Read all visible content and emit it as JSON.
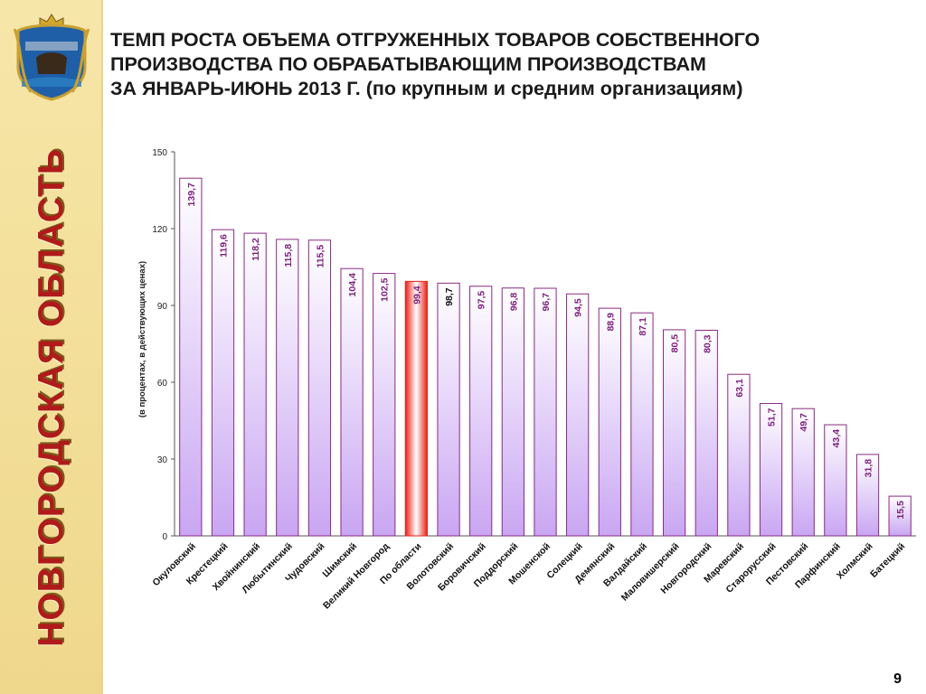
{
  "slide": {
    "region_title": "НОВГОРОДСКАЯ ОБЛАСТЬ",
    "title_lines": [
      "ТЕМП РОСТА ОБЪЕМА ОТГРУЖЕННЫХ ТОВАРОВ СОБСТВЕННОГО",
      "ПРОИЗВОДСТВА ПО ОБРАБАТЫВАЮЩИМ ПРОИЗВОДСТВАМ",
      "ЗА ЯНВАРЬ-ИЮНЬ 2013 Г. (по крупным и средним организациям)"
    ],
    "page_number": "9",
    "emblem_icon": "novgorod-coat-of-arms-icon"
  },
  "colors": {
    "bar_top": "#ffffff",
    "bar_bottom": "#c9a6f2",
    "bar_border": "#8a2a86",
    "label_color": "#7a1f7a",
    "highlight_bottom": "#e8201a",
    "highlight_label": "#7a1f7a",
    "region_label": "#1a1a1a",
    "side_band": "#f3df9a",
    "region_text": "#b01a1a"
  },
  "chart_data": {
    "type": "bar",
    "title": "",
    "xlabel": "",
    "ylabel": "(в процентах, в действующих ценах)",
    "ylim": [
      0,
      150
    ],
    "yticks": [
      0,
      30,
      60,
      90,
      120,
      150
    ],
    "grid": false,
    "categories": [
      "Окуловский",
      "Крестецкий",
      "Хвойнинский",
      "Любытинский",
      "Чудовский",
      "Шимский",
      "Великий Новгород",
      "По области",
      "Волотовский",
      "Боровичский",
      "Поддорский",
      "Мошенской",
      "Солецкий",
      "Демянский",
      "Валдайский",
      "Маловишерский",
      "Новгородский",
      "Маревский",
      "Старорусский",
      "Пестовский",
      "Парфинский",
      "Холмский",
      "Батецкий"
    ],
    "values": [
      139.7,
      119.6,
      118.2,
      115.8,
      115.5,
      104.4,
      102.5,
      99.4,
      98.7,
      97.5,
      96.8,
      96.7,
      94.5,
      88.9,
      87.1,
      80.5,
      80.3,
      63.1,
      51.7,
      49.7,
      43.4,
      31.8,
      15.5
    ],
    "value_labels": [
      "139,7",
      "119,6",
      "118,2",
      "115,8",
      "115,5",
      "104,4",
      "102,5",
      "99,4",
      "98,7",
      "97,5",
      "96,8",
      "96,7",
      "94,5",
      "88,9",
      "87,1",
      "80,5",
      "80,3",
      "63,1",
      "51,7",
      "49,7",
      "43,4",
      "31,8",
      "15,5"
    ],
    "highlight": "По области",
    "black_label": "Волотовский"
  }
}
